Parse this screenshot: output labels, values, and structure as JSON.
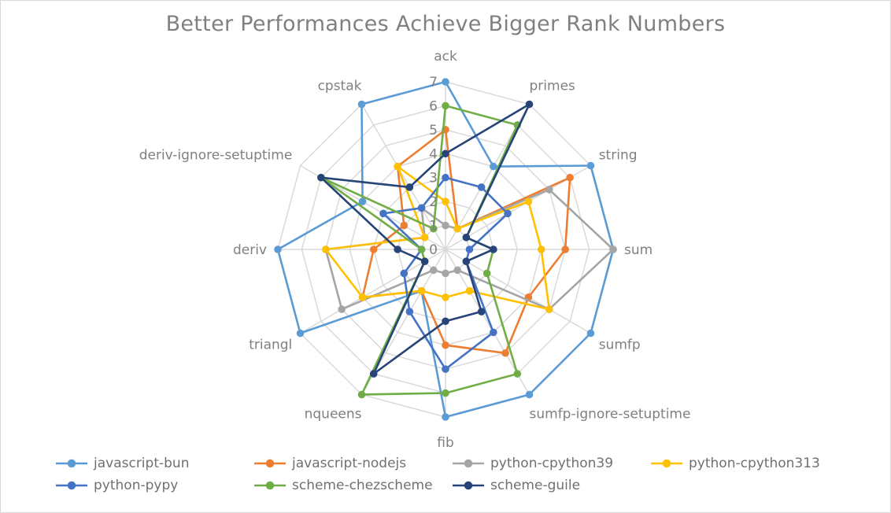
{
  "chart_data": {
    "type": "radar",
    "title": "Better Performances Achieve Bigger Rank Numbers",
    "categories": [
      "ack",
      "primes",
      "string",
      "sum",
      "sumfp",
      "sumfp-ignore-setuptime",
      "fib",
      "nqueens",
      "triangl",
      "deriv",
      "deriv-ignore-setuptime",
      "cpstak"
    ],
    "radial_ticks": [
      "0",
      "1",
      "2",
      "3",
      "4",
      "5",
      "6",
      "7"
    ],
    "rlim": [
      0,
      7
    ],
    "grid": true,
    "legend_position": "bottom",
    "series": [
      {
        "name": "javascript-bun",
        "color": "#5b9bd5",
        "values": [
          7,
          4,
          7,
          7,
          7,
          7,
          7,
          2,
          7,
          7,
          4,
          7
        ]
      },
      {
        "name": "javascript-nodejs",
        "color": "#ed7d31",
        "values": [
          5,
          1,
          6,
          5,
          4,
          5,
          4,
          2,
          4,
          3,
          2,
          4
        ]
      },
      {
        "name": "python-cpython39",
        "color": "#a5a5a5",
        "values": [
          1,
          1,
          5,
          7,
          5,
          1,
          1,
          1,
          5,
          5,
          1,
          2
        ]
      },
      {
        "name": "python-cpython313",
        "color": "#ffc000",
        "values": [
          2,
          1,
          4,
          4,
          5,
          2,
          2,
          2,
          4,
          5,
          1,
          4
        ]
      },
      {
        "name": "python-pypy",
        "color": "#4472c4",
        "values": [
          3,
          3,
          3,
          1,
          1,
          4,
          5,
          3,
          2,
          1,
          3,
          2
        ]
      },
      {
        "name": "scheme-chezscheme",
        "color": "#70ad47",
        "values": [
          6,
          6,
          1,
          2,
          2,
          6,
          6,
          7,
          1,
          1,
          6,
          1
        ]
      },
      {
        "name": "scheme-guile",
        "color": "#264478",
        "values": [
          4,
          7,
          1,
          2,
          1,
          3,
          3,
          6,
          1,
          2,
          6,
          3
        ]
      }
    ]
  }
}
